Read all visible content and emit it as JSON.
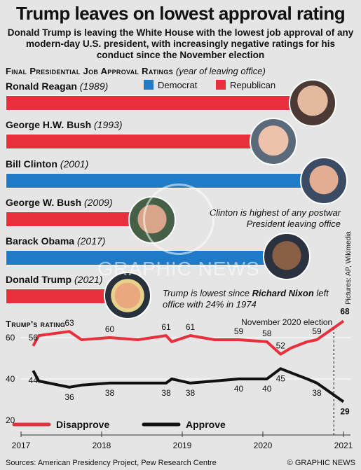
{
  "title": "Trump leaves on lowest approval rating",
  "subtitle": "Donald Trump is leaving the White House with the lowest job approval of any modern-day U.S. president, with increasingly negative ratings for his conduct since the November election",
  "section1": {
    "heading": "Final Presidential Job Approval Ratings",
    "note": "(year of leaving office)"
  },
  "party_legend": [
    {
      "label": "Democrat",
      "color": "#1f7bc8"
    },
    {
      "label": "Republican",
      "color": "#e8303d"
    }
  ],
  "presidents": [
    {
      "name": "Ronald Reagan",
      "year": "(1989)",
      "value": 63,
      "label": "63%",
      "party": "Republican"
    },
    {
      "name": "George H.W. Bush",
      "year": "(1993)",
      "value": 56,
      "label": "56%",
      "party": "Republican"
    },
    {
      "name": "Bill Clinton",
      "year": "(2001)",
      "value": 66,
      "label": "66%",
      "party": "Democrat"
    },
    {
      "name": "George W. Bush",
      "year": "(2009)",
      "value": 34,
      "label": "34%",
      "party": "Republican"
    },
    {
      "name": "Barack Obama",
      "year": "(2017)",
      "value": 59,
      "label": "59%",
      "party": "Democrat"
    },
    {
      "name": "Donald Trump",
      "year": "(2021)",
      "value": 29,
      "label": "29%",
      "party": "Republican"
    }
  ],
  "notes": {
    "clinton": "Clinton is highest of any postwar President leaving office",
    "trump_prefix": "Trump is lowest since ",
    "trump_bold": "Richard Nixon",
    "trump_suffix": " left office with 24% in 1974"
  },
  "watermark": "GRAPHIC NEWS",
  "credit": "Pictures: AP, Wikimedia",
  "chart_data": {
    "type": "line",
    "title": "Trump's rating",
    "annotation": "November 2020 election",
    "x_ticks": [
      "2017",
      "2018",
      "2019",
      "2020",
      "2021"
    ],
    "y_ticks": [
      "60",
      "40",
      "20"
    ],
    "ylim": [
      15,
      75
    ],
    "series": [
      {
        "name": "Disapprove",
        "color": "#e8303d",
        "points": [
          {
            "t": 2017.15,
            "v": 56,
            "label": "56"
          },
          {
            "t": 2017.22,
            "v": 61
          },
          {
            "t": 2017.6,
            "v": 63,
            "label": "63"
          },
          {
            "t": 2017.75,
            "v": 59
          },
          {
            "t": 2018.1,
            "v": 60,
            "label": "60"
          },
          {
            "t": 2018.45,
            "v": 59
          },
          {
            "t": 2018.8,
            "v": 61,
            "label": "61"
          },
          {
            "t": 2018.87,
            "v": 58
          },
          {
            "t": 2019.1,
            "v": 61,
            "label": "61"
          },
          {
            "t": 2019.4,
            "v": 59
          },
          {
            "t": 2019.7,
            "v": 59,
            "label": "59"
          },
          {
            "t": 2020.05,
            "v": 58,
            "label": "58"
          },
          {
            "t": 2020.22,
            "v": 52,
            "label": "52"
          },
          {
            "t": 2020.35,
            "v": 55
          },
          {
            "t": 2020.55,
            "v": 58
          },
          {
            "t": 2020.67,
            "v": 59,
            "label": "59"
          },
          {
            "t": 2021.0,
            "v": 68,
            "label": "68"
          }
        ]
      },
      {
        "name": "Approve",
        "color": "#111111",
        "points": [
          {
            "t": 2017.15,
            "v": 44,
            "label": "44"
          },
          {
            "t": 2017.22,
            "v": 39
          },
          {
            "t": 2017.6,
            "v": 36,
            "label": "36"
          },
          {
            "t": 2017.75,
            "v": 37
          },
          {
            "t": 2018.1,
            "v": 38,
            "label": "38"
          },
          {
            "t": 2018.8,
            "v": 38,
            "label": "38"
          },
          {
            "t": 2018.87,
            "v": 40
          },
          {
            "t": 2019.1,
            "v": 38,
            "label": "38"
          },
          {
            "t": 2019.7,
            "v": 40,
            "label": "40"
          },
          {
            "t": 2020.05,
            "v": 40,
            "label": "40"
          },
          {
            "t": 2020.22,
            "v": 45,
            "label": "45"
          },
          {
            "t": 2020.35,
            "v": 43
          },
          {
            "t": 2020.55,
            "v": 40
          },
          {
            "t": 2020.67,
            "v": 38,
            "label": "38"
          },
          {
            "t": 2021.0,
            "v": 29,
            "label": "29"
          }
        ]
      }
    ]
  },
  "sources": "Sources: American Presidency Project, Pew Research Centre",
  "copyright": "© GRAPHIC NEWS"
}
